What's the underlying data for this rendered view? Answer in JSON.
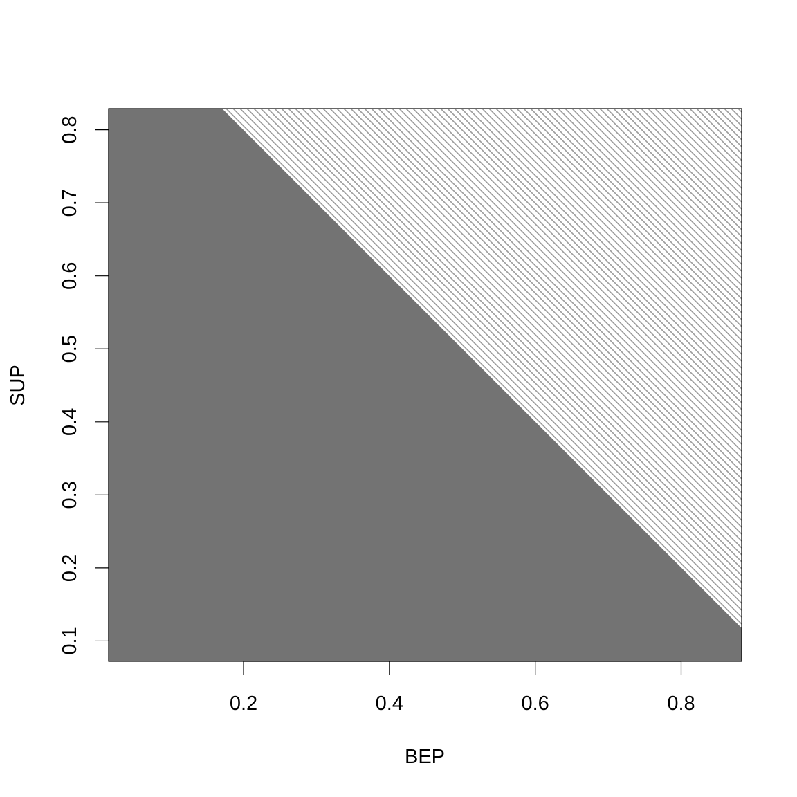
{
  "chart_data": {
    "type": "area",
    "title": "",
    "xlabel": "BEP",
    "ylabel": "SUP",
    "xlim": [
      0.015,
      0.883
    ],
    "ylim": [
      0.072,
      0.829
    ],
    "x_ticks": [
      0.2,
      0.4,
      0.6,
      0.8
    ],
    "x_tick_labels": [
      "0.2",
      "0.4",
      "0.6",
      "0.8"
    ],
    "y_ticks": [
      0.1,
      0.2,
      0.3,
      0.4,
      0.5,
      0.6,
      0.7,
      0.8
    ],
    "y_tick_labels": [
      "0.1",
      "0.2",
      "0.3",
      "0.4",
      "0.5",
      "0.6",
      "0.7",
      "0.8"
    ],
    "grid": false,
    "regions": [
      {
        "fill": "solid",
        "color": "#737373",
        "polygon": [
          [
            0.015,
            0.072
          ],
          [
            0.883,
            0.072
          ],
          [
            0.883,
            0.117
          ],
          [
            0.17,
            0.829
          ],
          [
            0.015,
            0.829
          ]
        ]
      },
      {
        "fill": "hatched",
        "color": "#9a9a9a",
        "polygon": [
          [
            0.17,
            0.829
          ],
          [
            0.883,
            0.829
          ],
          [
            0.883,
            0.117
          ]
        ]
      }
    ],
    "boundary_line": {
      "points": [
        [
          0.17,
          0.829
        ],
        [
          0.883,
          0.117
        ]
      ]
    }
  }
}
